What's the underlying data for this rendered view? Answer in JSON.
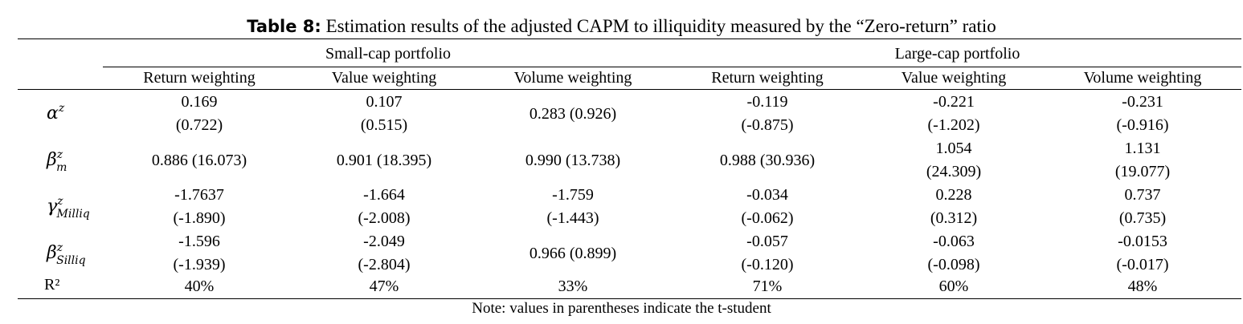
{
  "title": {
    "label": "Table 8:",
    "text": "Estimation results of the adjusted CAPM to illiquidity measured by the “Zero-return” ratio"
  },
  "groups": {
    "small": "Small-cap portfolio",
    "large": "Large-cap portfolio"
  },
  "columns": [
    "Return weighting",
    "Value weighting",
    "Volume weighting",
    "Return weighting",
    "Value weighting",
    "Volume weighting"
  ],
  "rows": {
    "alpha": {
      "symbol": "α",
      "sup": "z",
      "sub": "",
      "cells": [
        [
          "0.169",
          "(0.722)"
        ],
        [
          "0.107",
          "(0.515)"
        ],
        [
          "0.283 (0.926)"
        ],
        [
          "-0.119",
          "(-0.875)"
        ],
        [
          "-0.221",
          "(-1.202)"
        ],
        [
          "-0.231",
          "(-0.916)"
        ]
      ]
    },
    "beta_m": {
      "symbol": "β",
      "sup": "z",
      "sub": "m",
      "cells": [
        [
          "0.886 (16.073)"
        ],
        [
          "0.901 (18.395)"
        ],
        [
          "0.990 (13.738)"
        ],
        [
          "0.988 (30.936)"
        ],
        [
          "1.054",
          "(24.309)"
        ],
        [
          "1.131",
          "(19.077)"
        ]
      ]
    },
    "gamma_milliq": {
      "symbol": "γ",
      "sup": "z",
      "sub": "Milliq",
      "cells": [
        [
          "-1.7637",
          "(-1.890)"
        ],
        [
          "-1.664",
          "(-2.008)"
        ],
        [
          "-1.759",
          "(-1.443)"
        ],
        [
          "-0.034",
          "(-0.062)"
        ],
        [
          "0.228",
          "(0.312)"
        ],
        [
          "0.737",
          "(0.735)"
        ]
      ]
    },
    "beta_silliq": {
      "symbol": "β",
      "sup": "z",
      "sub": "Silliq",
      "cells": [
        [
          "-1.596",
          "(-1.939)"
        ],
        [
          "-2.049",
          "(-2.804)"
        ],
        [
          "0.966 (0.899)"
        ],
        [
          "-0.057",
          "(-0.120)"
        ],
        [
          "-0.063",
          "(-0.098)"
        ],
        [
          "-0.0153",
          "(-0.017)"
        ]
      ]
    },
    "r2": {
      "label": "R²",
      "cells": [
        [
          "40%"
        ],
        [
          "47%"
        ],
        [
          "33%"
        ],
        [
          "71%"
        ],
        [
          "60%"
        ],
        [
          "48%"
        ]
      ]
    }
  },
  "note": "Note: values in parentheses indicate the t-student"
}
